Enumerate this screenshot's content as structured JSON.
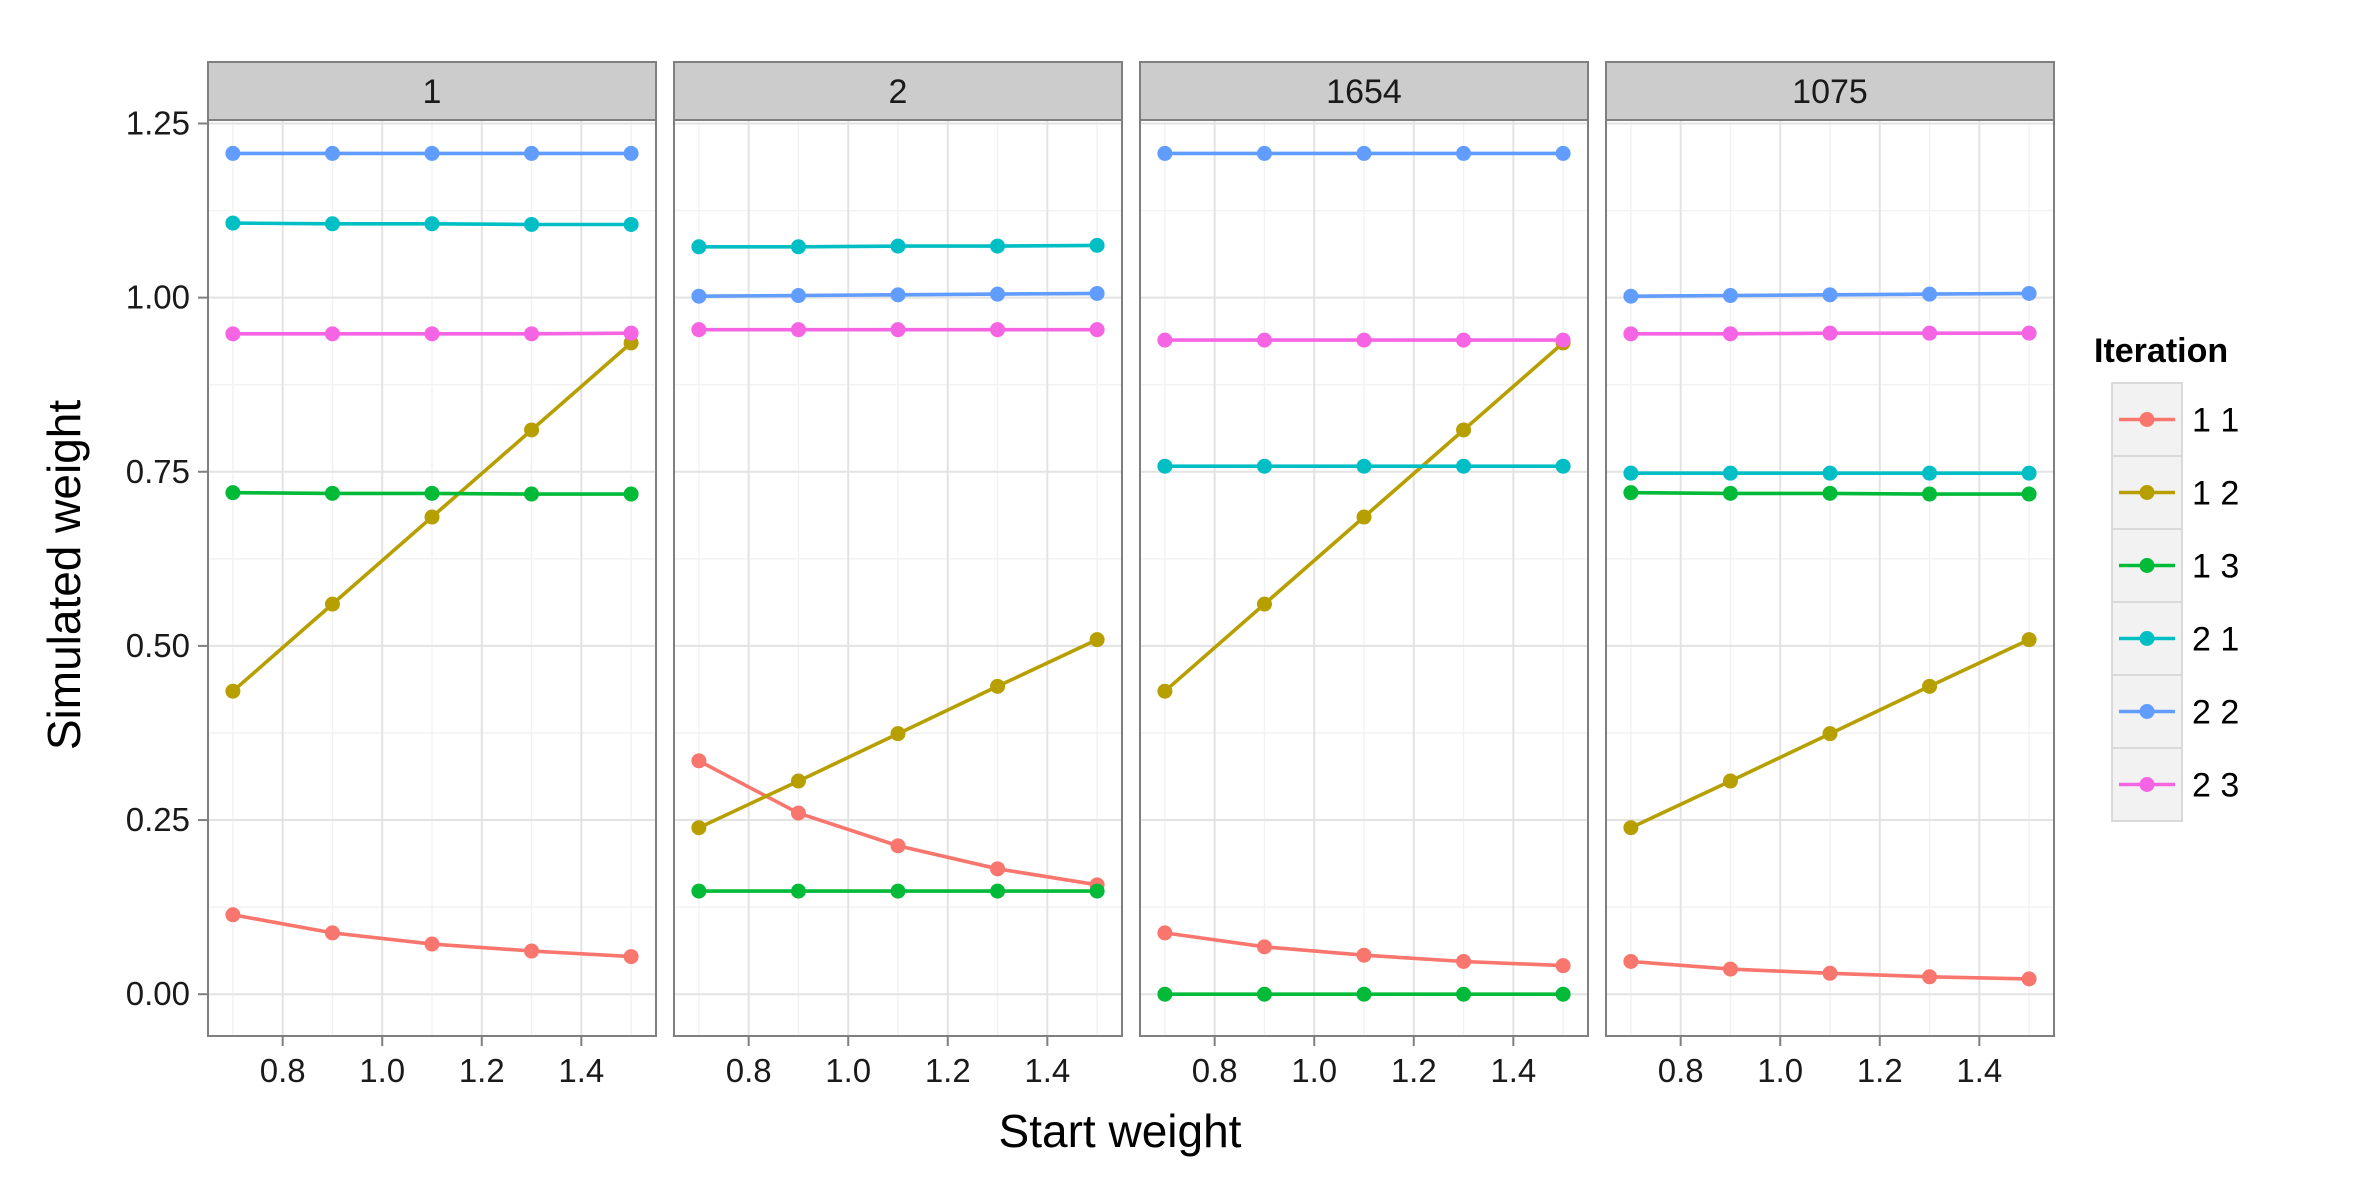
{
  "chart_data": {
    "type": "line",
    "xlabel": "Start weight",
    "ylabel": "Simulated weight",
    "xlim": [
      0.65,
      1.55
    ],
    "ylim": [
      -0.06,
      1.255
    ],
    "x_ticks": [
      0.8,
      1.0,
      1.2,
      1.4
    ],
    "x_tick_labels": [
      "0.8",
      "1.0",
      "1.2",
      "1.4"
    ],
    "y_ticks": [
      0.0,
      0.25,
      0.5,
      0.75,
      1.0,
      1.25
    ],
    "y_tick_labels": [
      "0.00",
      "0.25",
      "0.50",
      "0.75",
      "1.00",
      "1.25"
    ],
    "grid": true,
    "legend": {
      "title": "Iteration",
      "position": "right",
      "entries": [
        "1 1",
        "1 2",
        "1 3",
        "2 1",
        "2 2",
        "2 3"
      ],
      "colors": [
        "#F8766D",
        "#B79F00",
        "#00BA38",
        "#00BFC4",
        "#619CFF",
        "#F564E3"
      ]
    },
    "x": [
      0.7,
      0.9,
      1.1,
      1.3,
      1.5
    ],
    "panels": [
      {
        "label": "1",
        "series": [
          {
            "name": "1 1",
            "values": [
              0.114,
              0.088,
              0.072,
              0.062,
              0.054
            ]
          },
          {
            "name": "1 2",
            "values": [
              0.435,
              0.56,
              0.685,
              0.81,
              0.935
            ]
          },
          {
            "name": "1 3",
            "values": [
              0.72,
              0.719,
              0.719,
              0.718,
              0.718
            ]
          },
          {
            "name": "2 1",
            "values": [
              1.107,
              1.106,
              1.106,
              1.105,
              1.105
            ]
          },
          {
            "name": "2 2",
            "values": [
              1.207,
              1.207,
              1.207,
              1.207,
              1.207
            ]
          },
          {
            "name": "2 3",
            "values": [
              0.948,
              0.948,
              0.948,
              0.948,
              0.949
            ]
          }
        ]
      },
      {
        "label": "2",
        "series": [
          {
            "name": "1 1",
            "values": [
              0.335,
              0.26,
              0.213,
              0.18,
              0.157
            ]
          },
          {
            "name": "1 2",
            "values": [
              0.239,
              0.306,
              0.374,
              0.442,
              0.509
            ]
          },
          {
            "name": "1 3",
            "values": [
              0.148,
              0.148,
              0.148,
              0.148,
              0.148
            ]
          },
          {
            "name": "2 1",
            "values": [
              1.073,
              1.073,
              1.074,
              1.074,
              1.075
            ]
          },
          {
            "name": "2 2",
            "values": [
              1.002,
              1.003,
              1.004,
              1.005,
              1.006
            ]
          },
          {
            "name": "2 3",
            "values": [
              0.954,
              0.954,
              0.954,
              0.954,
              0.954
            ]
          }
        ]
      },
      {
        "label": "1654",
        "series": [
          {
            "name": "1 1",
            "values": [
              0.088,
              0.068,
              0.056,
              0.047,
              0.041
            ]
          },
          {
            "name": "1 2",
            "values": [
              0.435,
              0.56,
              0.685,
              0.81,
              0.935
            ]
          },
          {
            "name": "1 3",
            "values": [
              0.0,
              0.0,
              0.0,
              0.0,
              0.0
            ]
          },
          {
            "name": "2 1",
            "values": [
              0.758,
              0.758,
              0.758,
              0.758,
              0.758
            ]
          },
          {
            "name": "2 2",
            "values": [
              1.207,
              1.207,
              1.207,
              1.207,
              1.207
            ]
          },
          {
            "name": "2 3",
            "values": [
              0.939,
              0.939,
              0.939,
              0.939,
              0.939
            ]
          }
        ]
      },
      {
        "label": "1075",
        "series": [
          {
            "name": "1 1",
            "values": [
              0.047,
              0.036,
              0.03,
              0.025,
              0.022
            ]
          },
          {
            "name": "1 2",
            "values": [
              0.239,
              0.306,
              0.374,
              0.442,
              0.509
            ]
          },
          {
            "name": "1 3",
            "values": [
              0.72,
              0.719,
              0.719,
              0.718,
              0.718
            ]
          },
          {
            "name": "2 1",
            "values": [
              0.748,
              0.748,
              0.748,
              0.748,
              0.748
            ]
          },
          {
            "name": "2 2",
            "values": [
              1.002,
              1.003,
              1.004,
              1.005,
              1.006
            ]
          },
          {
            "name": "2 3",
            "values": [
              0.948,
              0.948,
              0.949,
              0.949,
              0.949
            ]
          }
        ]
      }
    ]
  }
}
